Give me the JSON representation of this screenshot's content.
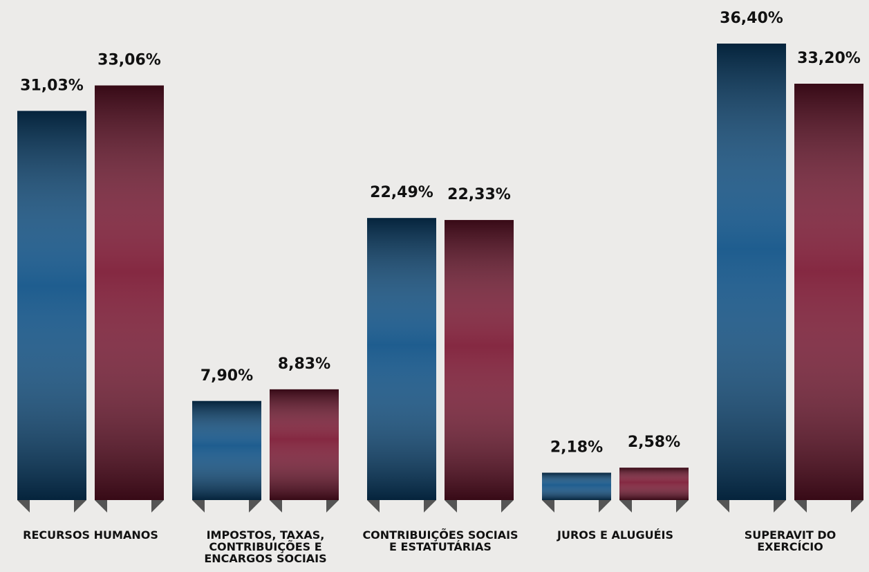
{
  "chart_data": {
    "type": "bar",
    "categories": [
      "RECURSOS HUMANOS",
      "IMPOSTOS, TAXAS, CONTRIBUIÇÕES E ENCARGOS SOCIAIS",
      "CONTRIBUIÇÕES SOCIAIS E ESTATUTÁRIAS",
      "JUROS E ALUGUÉIS",
      "SUPERAVIT DO EXERCÍCIO"
    ],
    "series": [
      {
        "color": "#0b4f85",
        "values": [
          31.03,
          7.9,
          22.49,
          2.18,
          36.4
        ],
        "value_labels": [
          "31,03%",
          "7,90%",
          "22,49%",
          "2,18%",
          "36,40%"
        ]
      },
      {
        "color": "#7a1631",
        "values": [
          33.06,
          8.83,
          22.33,
          2.58,
          33.2
        ],
        "value_labels": [
          "33,06%",
          "8,83%",
          "22,33%",
          "2,58%",
          "33,20%"
        ]
      }
    ]
  }
}
